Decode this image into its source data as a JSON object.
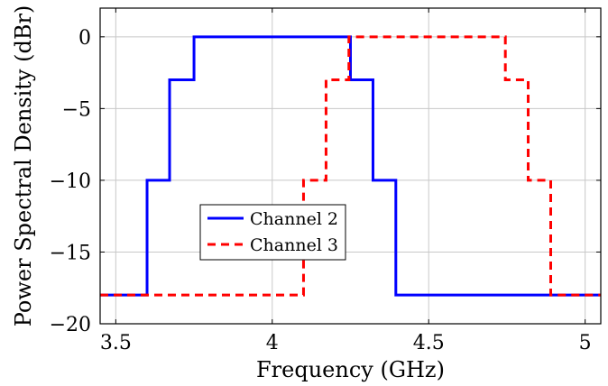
{
  "chart_data": {
    "type": "line",
    "title": "",
    "xlabel": "Frequency (GHz)",
    "ylabel": "Power Spectral Density (dBr)",
    "xlim": [
      3.45,
      5.05
    ],
    "ylim": [
      -20,
      2
    ],
    "xticks": [
      3.5,
      4,
      4.5,
      5
    ],
    "xtick_labels": [
      "3.5",
      "4",
      "4.5",
      "5"
    ],
    "yticks": [
      0,
      -5,
      -10,
      -15,
      -20
    ],
    "ytick_labels": [
      "0",
      "−5",
      "−10",
      "−15",
      "−20"
    ],
    "grid": true,
    "legend_position": "center-left",
    "series": [
      {
        "name": "Channel 2",
        "color": "#0000ff",
        "style": "solid",
        "points": [
          [
            3.45,
            -18
          ],
          [
            3.6,
            -18
          ],
          [
            3.6,
            -10
          ],
          [
            3.672,
            -10
          ],
          [
            3.672,
            -3
          ],
          [
            3.75,
            -3
          ],
          [
            3.75,
            0
          ],
          [
            4.25,
            0
          ],
          [
            4.25,
            -3
          ],
          [
            4.322,
            -3
          ],
          [
            4.322,
            -10
          ],
          [
            4.395,
            -10
          ],
          [
            4.395,
            -18
          ],
          [
            5.05,
            -18
          ]
        ]
      },
      {
        "name": "Channel 3",
        "color": "#ff0000",
        "style": "dashed",
        "points": [
          [
            3.45,
            -18
          ],
          [
            4.1,
            -18
          ],
          [
            4.1,
            -10
          ],
          [
            4.172,
            -10
          ],
          [
            4.172,
            -3
          ],
          [
            4.245,
            -3
          ],
          [
            4.245,
            0
          ],
          [
            4.745,
            0
          ],
          [
            4.745,
            -3
          ],
          [
            4.818,
            -3
          ],
          [
            4.818,
            -10
          ],
          [
            4.89,
            -10
          ],
          [
            4.89,
            -18
          ],
          [
            5.05,
            -18
          ]
        ]
      }
    ]
  }
}
